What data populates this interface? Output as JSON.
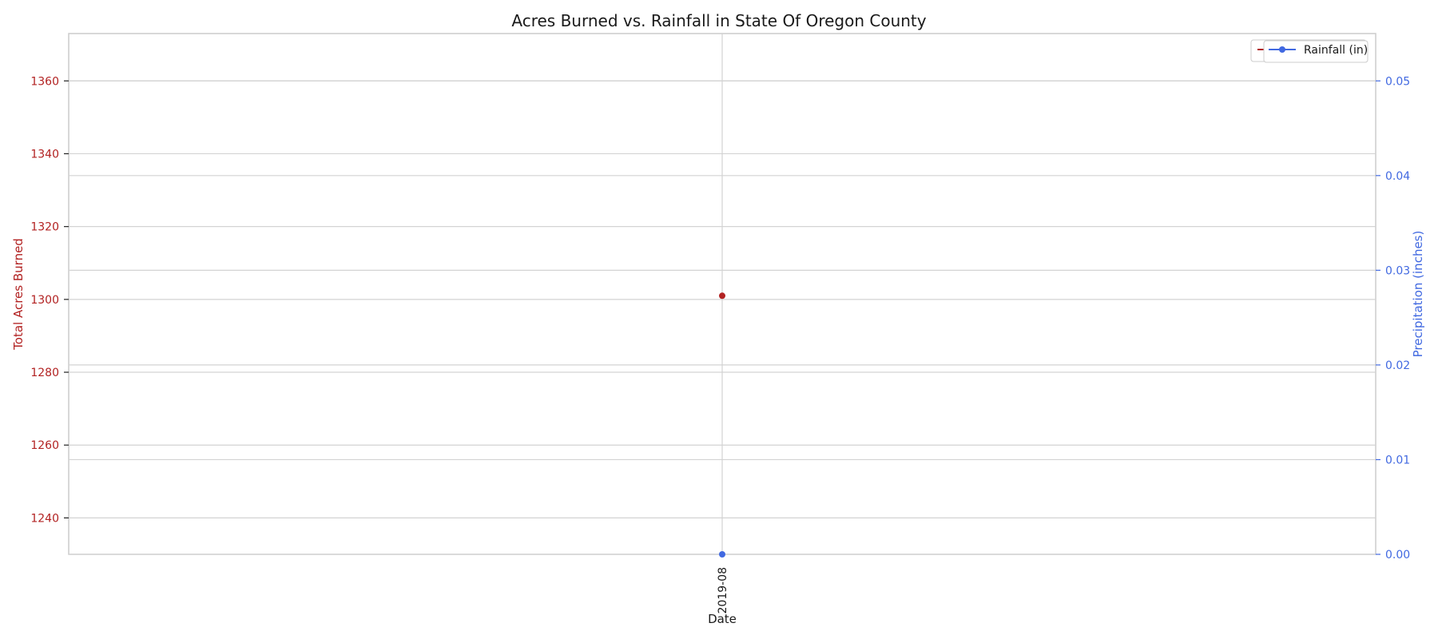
{
  "chart_data": {
    "type": "line",
    "title": "Acres Burned vs. Rainfall in State Of Oregon County",
    "xlabel": "Date",
    "x": [
      "2019-08"
    ],
    "left_axis": {
      "label": "Total Acres Burned",
      "color": "#b22222",
      "ylim": [
        1230,
        1373
      ],
      "ticks": [
        1240,
        1260,
        1280,
        1300,
        1320,
        1340,
        1360
      ]
    },
    "right_axis": {
      "label": "Precipitation (inches)",
      "color": "#4169e1",
      "ylim": [
        0,
        0.055
      ],
      "ticks": [
        "0.00",
        "0.01",
        "0.02",
        "0.03",
        "0.04",
        "0.05"
      ],
      "tick_values": [
        0,
        0.01,
        0.02,
        0.03,
        0.04,
        0.05
      ]
    },
    "series": [
      {
        "name": "Acres Burned",
        "axis": "left",
        "color": "#b22222",
        "values": [
          1301
        ]
      },
      {
        "name": "Rainfall (in)",
        "axis": "right",
        "color": "#4169e1",
        "values": [
          0.0
        ]
      }
    ],
    "legend": {
      "placement": "top-right",
      "visible_label": "Rainfall (in)"
    },
    "grid": true
  }
}
